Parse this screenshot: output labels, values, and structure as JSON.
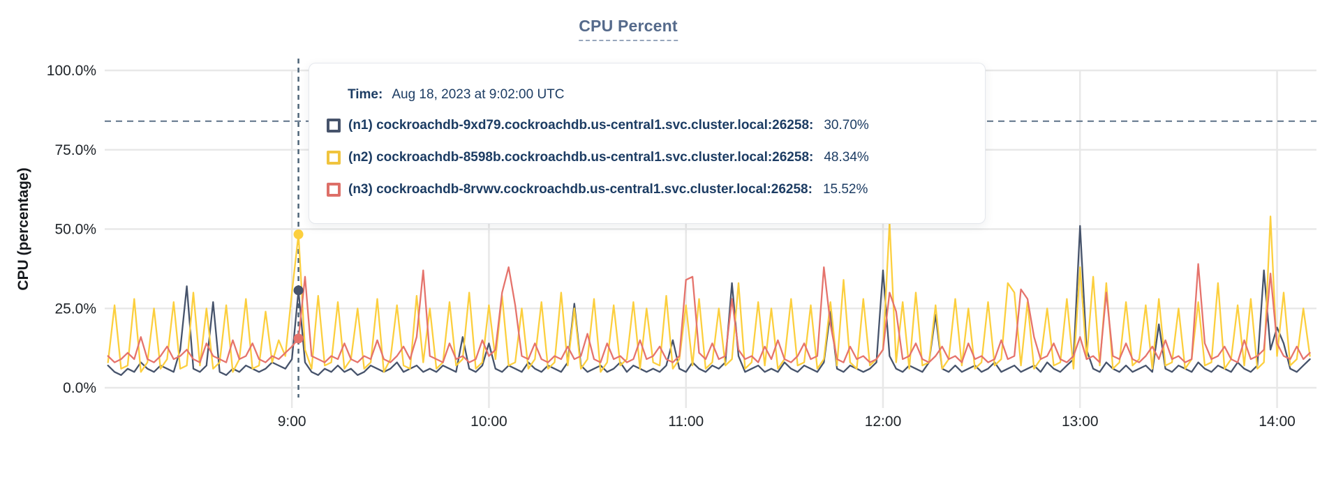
{
  "title": "CPU Percent",
  "tooltip": {
    "time_label": "Time:",
    "time_value": "Aug 18, 2023 at 9:02:00 UTC",
    "rows": [
      {
        "label": "(n1) cockroachdb-9xd79.cockroachdb.us-central1.svc.cluster.local:26258:",
        "value": "30.70%",
        "color": "#46536b"
      },
      {
        "label": "(n2) cockroachdb-8598b.cockroachdb.us-central1.svc.cluster.local:26258:",
        "value": "48.34%",
        "color": "#f0c43e"
      },
      {
        "label": "(n3) cockroachdb-8rvwv.cockroachdb.us-central1.svc.cluster.local:26258:",
        "value": "15.52%",
        "color": "#dd6f68"
      }
    ]
  },
  "colors": {
    "grid": "#e8e8e8",
    "crosshair": "#4e6478",
    "dashed_rule": "#5d7187",
    "title": "#556a8b",
    "tooltip_text": "#1c3c63",
    "tick_text": "#1e2328"
  },
  "chart_data": {
    "type": "line",
    "title": "CPU Percent",
    "ylabel": "CPU (percentage)",
    "grid": true,
    "legend_position": "tooltip-overlay",
    "y_domain": [
      0,
      100
    ],
    "x_domain_minutes": [
      483,
      852
    ],
    "x_start_minutes": 484,
    "x_step_minutes": 2,
    "y_axis": {
      "label": "CPU (percentage)",
      "ticks": [
        {
          "value": 0,
          "label": "0.0%"
        },
        {
          "value": 25,
          "label": "25.0%"
        },
        {
          "value": 50,
          "label": "50.0%"
        },
        {
          "value": 75,
          "label": "75.0%"
        },
        {
          "value": 100,
          "label": "100.0%"
        }
      ]
    },
    "x_axis": {
      "ticks": [
        {
          "minutes": 540,
          "label": "9:00"
        },
        {
          "minutes": 600,
          "label": "10:00"
        },
        {
          "minutes": 660,
          "label": "11:00"
        },
        {
          "minutes": 720,
          "label": "12:00"
        },
        {
          "minutes": 780,
          "label": "13:00"
        },
        {
          "minutes": 840,
          "label": "14:00"
        }
      ]
    },
    "dashed_rule_pct": 84,
    "crosshair": {
      "minutes": 542,
      "time": "9:02:00",
      "points": [
        {
          "series": "n1",
          "value": 30.7
        },
        {
          "series": "n2",
          "value": 48.34
        },
        {
          "series": "n3",
          "value": 15.52
        }
      ]
    },
    "series": [
      {
        "id": "n1",
        "name": "(n1) cockroachdb-9xd79.cockroachdb.us-central1.svc.cluster.local:26258",
        "color": "#46536b",
        "values": [
          7,
          5,
          4,
          6,
          5,
          8,
          6,
          5,
          7,
          6,
          5,
          12,
          32,
          6,
          5,
          7,
          27,
          5,
          4,
          6,
          5,
          7,
          6,
          5,
          6,
          8,
          7,
          6,
          9,
          30.7,
          8,
          5,
          4,
          6,
          5,
          7,
          5,
          6,
          4,
          5,
          7,
          6,
          5,
          6,
          8,
          5,
          6,
          7,
          5,
          6,
          5,
          7,
          6,
          5,
          16,
          6,
          5,
          7,
          14,
          6,
          5,
          7,
          6,
          5,
          8,
          6,
          5,
          7,
          6,
          5,
          8,
          26.5,
          7,
          5,
          6,
          7,
          5,
          6,
          8,
          5,
          7,
          6,
          5,
          6,
          5,
          7,
          15,
          6,
          5,
          8,
          6,
          5,
          7,
          6,
          8,
          33,
          10,
          5,
          6,
          7,
          5,
          6,
          5,
          8,
          6,
          5,
          7,
          6,
          5,
          8,
          24,
          6,
          5,
          7,
          6,
          5,
          6,
          8,
          37,
          10,
          6,
          5,
          7,
          6,
          5,
          8,
          23,
          6,
          5,
          7,
          5,
          6,
          7,
          5,
          6,
          8,
          5,
          6,
          7,
          5,
          6,
          7,
          5,
          8,
          6,
          5,
          7,
          9,
          51,
          12,
          6,
          5,
          8,
          6,
          5,
          7,
          5,
          6,
          7,
          5,
          20,
          6,
          5,
          7,
          6,
          5,
          8,
          6,
          5,
          7,
          6,
          5,
          8,
          6,
          5,
          7,
          37,
          12,
          19,
          14,
          6,
          5,
          7,
          9
        ]
      },
      {
        "id": "n2",
        "name": "(n2) cockroachdb-8598b.cockroachdb.us-central1.svc.cluster.local:26258",
        "color": "#fccf3e",
        "values": [
          8,
          26,
          6,
          7,
          28,
          5,
          8,
          25,
          6,
          9,
          27,
          6,
          7,
          30,
          7,
          25,
          6,
          8,
          26,
          5,
          9,
          28,
          6,
          7,
          24,
          8,
          15,
          10,
          30,
          48.34,
          12,
          6,
          29,
          7,
          8,
          27,
          6,
          9,
          25,
          6,
          8,
          28,
          5,
          9,
          26,
          7,
          6,
          29,
          8,
          25,
          6,
          8,
          27,
          7,
          9,
          30,
          6,
          8,
          26,
          9,
          29,
          7,
          8,
          25,
          6,
          9,
          27,
          6,
          8,
          30,
          7,
          25,
          6,
          9,
          28,
          5,
          8,
          26,
          7,
          9,
          27,
          6,
          25,
          8,
          7,
          29,
          6,
          9,
          26,
          7,
          28,
          6,
          8,
          25,
          7,
          9,
          33,
          6,
          8,
          27,
          7,
          25,
          6,
          9,
          28,
          7,
          8,
          26,
          6,
          9,
          27,
          7,
          34,
          8,
          6,
          28,
          7,
          9,
          12,
          52,
          8,
          27,
          6,
          30,
          7,
          8,
          26,
          6,
          9,
          28,
          7,
          25,
          6,
          8,
          27,
          7,
          9,
          33,
          30,
          7,
          27,
          6,
          9,
          25,
          7,
          8,
          28,
          6,
          38,
          9,
          35,
          7,
          33,
          6,
          8,
          27,
          7,
          9,
          26,
          6,
          28,
          7,
          8,
          25,
          6,
          9,
          27,
          7,
          8,
          33,
          6,
          9,
          26,
          7,
          28,
          6,
          8,
          54,
          10,
          30,
          7,
          9,
          25,
          10
        ]
      },
      {
        "id": "n3",
        "name": "(n3) cockroachdb-8rvwv.cockroachdb.us-central1.svc.cluster.local:26258",
        "color": "#e5736c",
        "values": [
          10,
          8,
          9,
          11,
          9,
          16,
          9,
          8,
          10,
          13,
          9,
          10,
          12,
          9,
          8,
          14,
          10,
          9,
          8,
          15,
          9,
          10,
          14,
          9,
          8,
          10,
          9,
          11,
          13,
          15.52,
          35,
          10,
          9,
          8,
          10,
          9,
          14,
          9,
          8,
          10,
          9,
          15,
          9,
          8,
          10,
          13,
          9,
          16,
          37,
          10,
          9,
          8,
          14,
          9,
          10,
          8,
          9,
          15,
          10,
          12,
          30,
          38,
          26,
          10,
          9,
          14,
          9,
          8,
          10,
          9,
          13,
          9,
          10,
          17,
          9,
          8,
          14,
          9,
          10,
          8,
          9,
          15,
          9,
          10,
          13,
          9,
          8,
          10,
          34,
          35,
          11,
          9,
          14,
          9,
          10,
          28,
          12,
          9,
          10,
          8,
          13,
          9,
          15,
          9,
          8,
          10,
          14,
          9,
          10,
          38,
          20,
          9,
          8,
          13,
          9,
          10,
          8,
          9,
          12,
          30,
          24,
          9,
          10,
          14,
          9,
          8,
          10,
          13,
          9,
          10,
          8,
          14,
          9,
          10,
          8,
          9,
          15,
          9,
          10,
          31,
          28,
          16,
          9,
          10,
          14,
          9,
          8,
          10,
          16,
          9,
          10,
          8,
          30,
          10,
          9,
          14,
          9,
          8,
          10,
          13,
          9,
          15,
          9,
          10,
          8,
          9,
          39,
          14,
          9,
          10,
          13,
          9,
          8,
          15,
          9,
          10,
          12,
          36,
          14,
          10,
          9,
          13,
          9,
          11
        ]
      }
    ]
  }
}
